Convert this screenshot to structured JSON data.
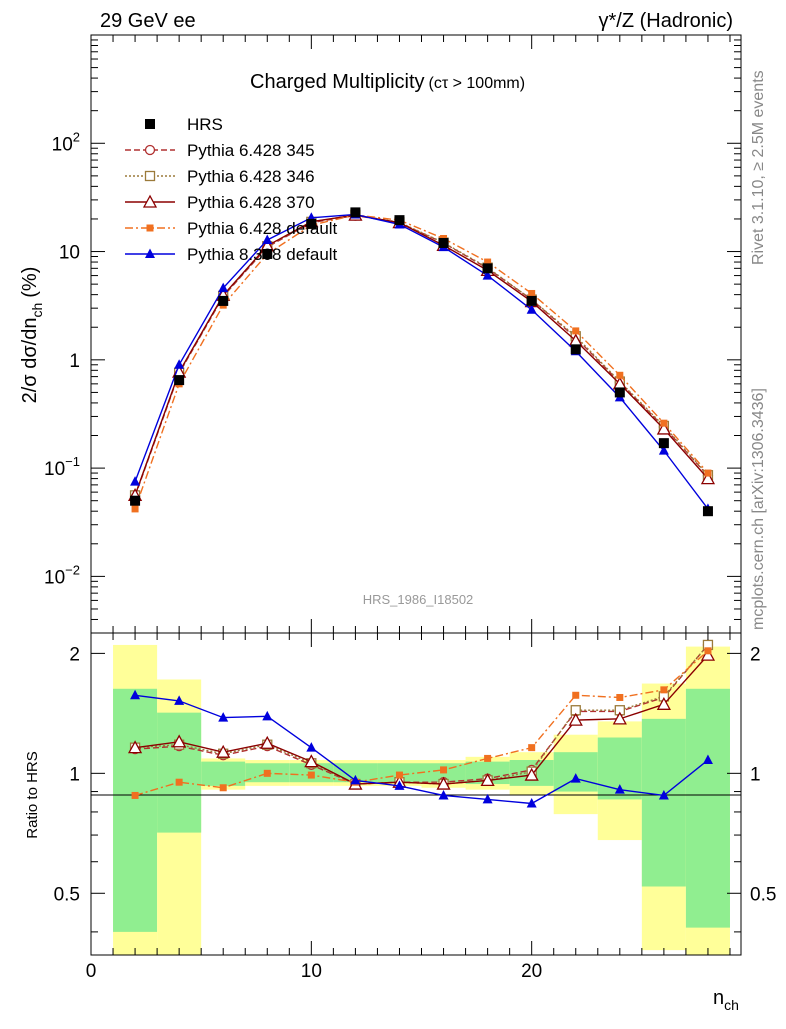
{
  "header": {
    "left": "29 GeV ee",
    "right": "γ*/Z (Hadronic)"
  },
  "side_text": {
    "rivet": "Rivet 3.1.10, ≥ 2.5M events",
    "mcplots": "mcplots.cern.ch [arXiv:1306.3436]"
  },
  "chart_data": [
    {
      "type": "line",
      "title": "Charged Multiplicity",
      "title_suffix": "(cτ > 100mm)",
      "watermark": "HRS_1986_I18502",
      "ylabel": "2/σ dσ/dn",
      "ylabel_sub": "ch",
      "ylabel_unit": "(%)",
      "yscale": "log",
      "ylim": [
        0.003,
        1000
      ],
      "xlim": [
        0,
        29.5
      ],
      "yticks": [
        {
          "v": 0.01,
          "base": "10",
          "exp": "−2"
        },
        {
          "v": 0.1,
          "base": "10",
          "exp": "−1"
        },
        {
          "v": 1,
          "base": "1",
          "exp": ""
        },
        {
          "v": 10,
          "base": "10",
          "exp": ""
        },
        {
          "v": 100,
          "base": "10",
          "exp": "2"
        }
      ],
      "legend_position": "top-left",
      "x": [
        2,
        4,
        6,
        8,
        10,
        12,
        14,
        16,
        18,
        20,
        22,
        24,
        26,
        28
      ],
      "series": [
        {
          "name": "HRS",
          "color": "#000000",
          "marker": "filled-square",
          "line": "none",
          "values": [
            0.05,
            0.65,
            3.5,
            9.5,
            18,
            23,
            19.5,
            12,
            7,
            3.5,
            1.25,
            0.5,
            0.17,
            0.04
          ]
        },
        {
          "name": "Pythia 6.428 345",
          "color": "#b03030",
          "marker": "open-circle",
          "line": "dashed",
          "values": [
            0.055,
            0.75,
            3.85,
            11,
            18.5,
            21.5,
            18.5,
            12,
            7,
            3.6,
            1.6,
            0.62,
            0.24,
            0.085
          ]
        },
        {
          "name": "Pythia 6.428 346",
          "color": "#9b7a3a",
          "marker": "open-square",
          "line": "dotted",
          "values": [
            0.056,
            0.76,
            3.9,
            11.2,
            18.8,
            21.8,
            18.6,
            12.1,
            7.1,
            3.6,
            1.65,
            0.63,
            0.245,
            0.086
          ]
        },
        {
          "name": "Pythia 6.428 370",
          "color": "#8b0000",
          "marker": "open-triangle",
          "line": "solid",
          "values": [
            0.056,
            0.77,
            3.95,
            11.3,
            18.9,
            21.7,
            18.5,
            11.4,
            6.7,
            3.45,
            1.5,
            0.6,
            0.23,
            0.08
          ]
        },
        {
          "name": "Pythia 6.428 default",
          "color": "#f07020",
          "marker": "small-filled-square",
          "line": "dashdot",
          "values": [
            0.042,
            0.6,
            3.2,
            9.5,
            17.5,
            21.8,
            19.5,
            13.2,
            8,
            4.1,
            1.85,
            0.72,
            0.26,
            0.09
          ]
        },
        {
          "name": "Pythia 8.308 default",
          "color": "#0000dd",
          "marker": "filled-triangle",
          "line": "solid",
          "values": [
            0.075,
            0.9,
            4.6,
            12.8,
            20.5,
            22,
            17.8,
            11,
            6,
            2.9,
            1.2,
            0.45,
            0.145,
            0.042
          ]
        }
      ]
    },
    {
      "type": "line",
      "ylabel": "Ratio to HRS",
      "xlabel": "n",
      "xlabel_sub": "ch",
      "xlim": [
        0,
        29.5
      ],
      "ylim": [
        0.35,
        2.25
      ],
      "yscale": "log",
      "xticks": [
        0,
        10,
        20
      ],
      "yticks": [
        0.5,
        1,
        2
      ],
      "x": [
        2,
        4,
        6,
        8,
        10,
        12,
        14,
        16,
        18,
        20,
        22,
        24,
        26,
        28
      ],
      "bands": {
        "bin_edges": [
          1,
          3,
          5,
          7,
          9,
          11,
          13,
          15,
          17,
          19,
          21,
          23,
          25,
          27,
          29
        ],
        "yellow_low": [
          0.3,
          0.3,
          0.91,
          0.93,
          0.93,
          0.93,
          0.93,
          0.92,
          0.91,
          0.88,
          0.79,
          0.68,
          0.36,
          0.32
        ],
        "yellow_high": [
          2.1,
          1.72,
          1.09,
          1.08,
          1.08,
          1.08,
          1.08,
          1.08,
          1.1,
          1.13,
          1.25,
          1.35,
          1.68,
          2.08
        ],
        "green_low": [
          0.4,
          0.71,
          0.93,
          0.95,
          0.95,
          0.95,
          0.95,
          0.95,
          0.94,
          0.93,
          0.9,
          0.86,
          0.52,
          0.41
        ],
        "green_high": [
          1.63,
          1.42,
          1.07,
          1.06,
          1.06,
          1.06,
          1.06,
          1.06,
          1.07,
          1.08,
          1.13,
          1.23,
          1.37,
          1.63
        ]
      },
      "series": [
        {
          "name": "Pythia 6.428 345",
          "values": [
            1.15,
            1.17,
            1.11,
            1.17,
            1.05,
            0.94,
            0.95,
            0.95,
            0.97,
            1.02,
            1.43,
            1.43,
            1.55,
            2.1
          ]
        },
        {
          "name": "Pythia 6.428 346",
          "values": [
            1.16,
            1.18,
            1.12,
            1.18,
            1.06,
            0.94,
            0.95,
            0.94,
            0.96,
            1.01,
            1.44,
            1.44,
            1.56,
            2.1
          ]
        },
        {
          "name": "Pythia 6.428 370",
          "values": [
            1.16,
            1.2,
            1.13,
            1.19,
            1.07,
            0.94,
            0.95,
            0.94,
            0.96,
            0.99,
            1.36,
            1.37,
            1.49,
            1.98
          ]
        },
        {
          "name": "Pythia 6.428 default",
          "values": [
            0.88,
            0.95,
            0.92,
            1.0,
            0.99,
            0.95,
            0.99,
            1.02,
            1.09,
            1.16,
            1.57,
            1.55,
            1.62,
            2.03
          ]
        },
        {
          "name": "Pythia 8.308 default",
          "values": [
            1.57,
            1.52,
            1.38,
            1.39,
            1.16,
            0.96,
            0.93,
            0.88,
            0.86,
            0.84,
            0.97,
            0.91,
            0.88,
            1.08
          ]
        }
      ]
    }
  ]
}
